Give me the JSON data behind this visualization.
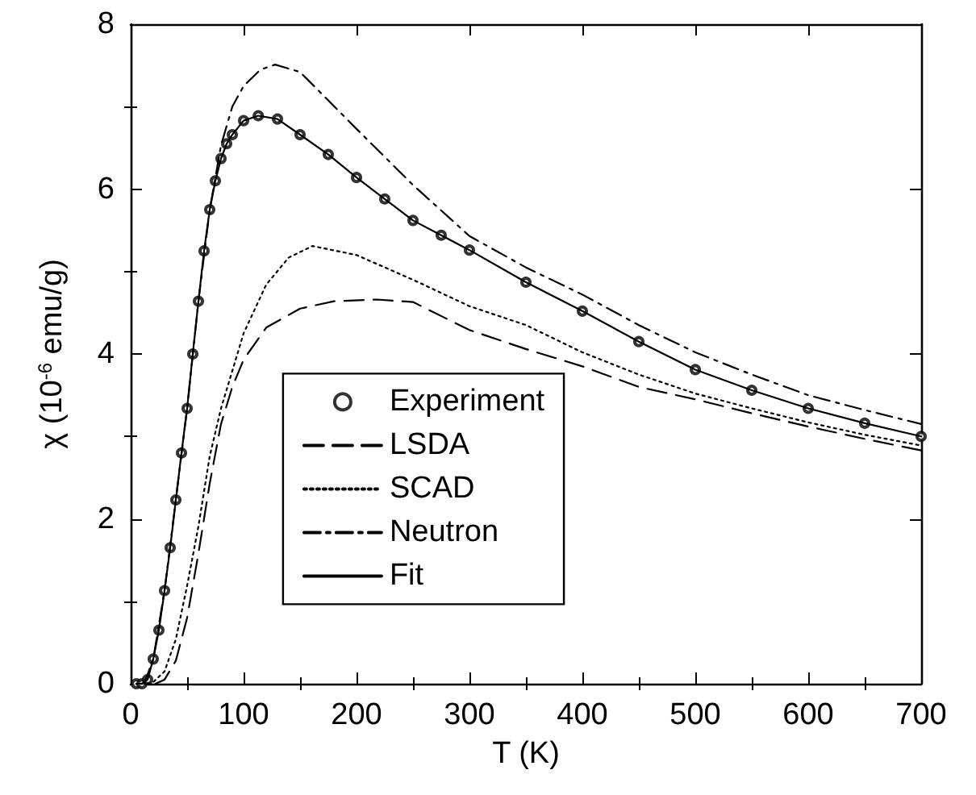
{
  "chart_data": {
    "type": "line",
    "xlabel": "T (K)",
    "ylabel": "χ (10$^{-6}$ emu/g)",
    "xlim": [
      0,
      700
    ],
    "xticks": [
      0,
      100,
      200,
      300,
      400,
      500,
      600,
      700
    ],
    "ylim": [
      0,
      8
    ],
    "yticks": [
      0,
      2,
      4,
      6,
      8
    ],
    "grid": false,
    "legend": "center",
    "series": [
      {
        "name": "Experiment",
        "type": "scatter",
        "marker": "circle",
        "color": "#000000",
        "x": [
          5,
          10,
          15,
          20,
          25,
          30,
          35,
          40,
          45,
          50,
          55,
          60,
          65,
          70,
          75,
          80,
          85,
          90,
          100,
          113,
          130,
          150,
          175,
          200,
          225,
          250,
          275,
          300,
          350,
          400,
          450,
          500,
          550,
          600,
          650,
          700
        ],
        "values": [
          0.0,
          0.0,
          0.05,
          0.3,
          0.65,
          1.13,
          1.65,
          2.23,
          2.8,
          3.34,
          4.0,
          4.64,
          5.25,
          5.75,
          6.1,
          6.37,
          6.55,
          6.66,
          6.83,
          6.89,
          6.85,
          6.66,
          6.42,
          6.14,
          5.88,
          5.62,
          5.44,
          5.26,
          4.87,
          4.52,
          4.15,
          3.81,
          3.56,
          3.34,
          3.16,
          3.0
        ]
      },
      {
        "name": "LSDA",
        "line_style": "dashed",
        "color": "#000000",
        "x": [
          22,
          30,
          40,
          50,
          60,
          70,
          80,
          90,
          100,
          120,
          150,
          180,
          218,
          250,
          300,
          350,
          400,
          450,
          500,
          550,
          600,
          650,
          700
        ],
        "values": [
          0,
          0.05,
          0.28,
          0.8,
          1.58,
          2.43,
          3.15,
          3.6,
          3.93,
          4.32,
          4.55,
          4.64,
          4.66,
          4.63,
          4.29,
          4.06,
          3.85,
          3.6,
          3.45,
          3.28,
          3.12,
          2.97,
          2.83
        ]
      },
      {
        "name": "SCAD",
        "line_style": "dotted",
        "color": "#000000",
        "x": [
          15,
          20,
          30,
          40,
          50,
          60,
          70,
          80,
          100,
          120,
          140,
          161,
          200,
          250,
          300,
          350,
          400,
          450,
          500,
          550,
          600,
          650,
          700
        ],
        "values": [
          0,
          0.02,
          0.15,
          0.54,
          1.19,
          1.91,
          2.76,
          3.34,
          4.25,
          4.84,
          5.17,
          5.31,
          5.2,
          4.9,
          4.58,
          4.35,
          4.02,
          3.75,
          3.52,
          3.34,
          3.17,
          3.02,
          2.89
        ]
      },
      {
        "name": "Neutron",
        "line_style": "dashdot",
        "color": "#000000",
        "x": [
          12,
          20,
          30,
          40,
          50,
          60,
          70,
          80,
          90,
          100,
          115,
          128,
          150,
          200,
          250,
          300,
          350,
          400,
          450,
          500,
          550,
          600,
          650,
          700
        ],
        "values": [
          0,
          0.3,
          1.13,
          2.23,
          3.34,
          4.64,
          5.75,
          6.53,
          7.0,
          7.25,
          7.45,
          7.51,
          7.42,
          6.73,
          6.05,
          5.43,
          5.05,
          4.72,
          4.35,
          4.02,
          3.75,
          3.5,
          3.32,
          3.15
        ]
      },
      {
        "name": "Fit",
        "line_style": "solid",
        "color": "#000000",
        "x": [
          5,
          10,
          15,
          20,
          25,
          30,
          35,
          40,
          45,
          50,
          55,
          60,
          65,
          70,
          75,
          80,
          85,
          90,
          100,
          113,
          130,
          150,
          175,
          200,
          225,
          250,
          275,
          300,
          350,
          400,
          450,
          500,
          550,
          600,
          650,
          700
        ],
        "values": [
          0.0,
          0.0,
          0.05,
          0.3,
          0.65,
          1.13,
          1.65,
          2.23,
          2.8,
          3.34,
          4.0,
          4.64,
          5.25,
          5.75,
          6.1,
          6.37,
          6.55,
          6.66,
          6.83,
          6.89,
          6.85,
          6.66,
          6.42,
          6.14,
          5.88,
          5.62,
          5.44,
          5.26,
          4.87,
          4.52,
          4.15,
          3.81,
          3.56,
          3.34,
          3.16,
          3.0
        ]
      }
    ]
  }
}
